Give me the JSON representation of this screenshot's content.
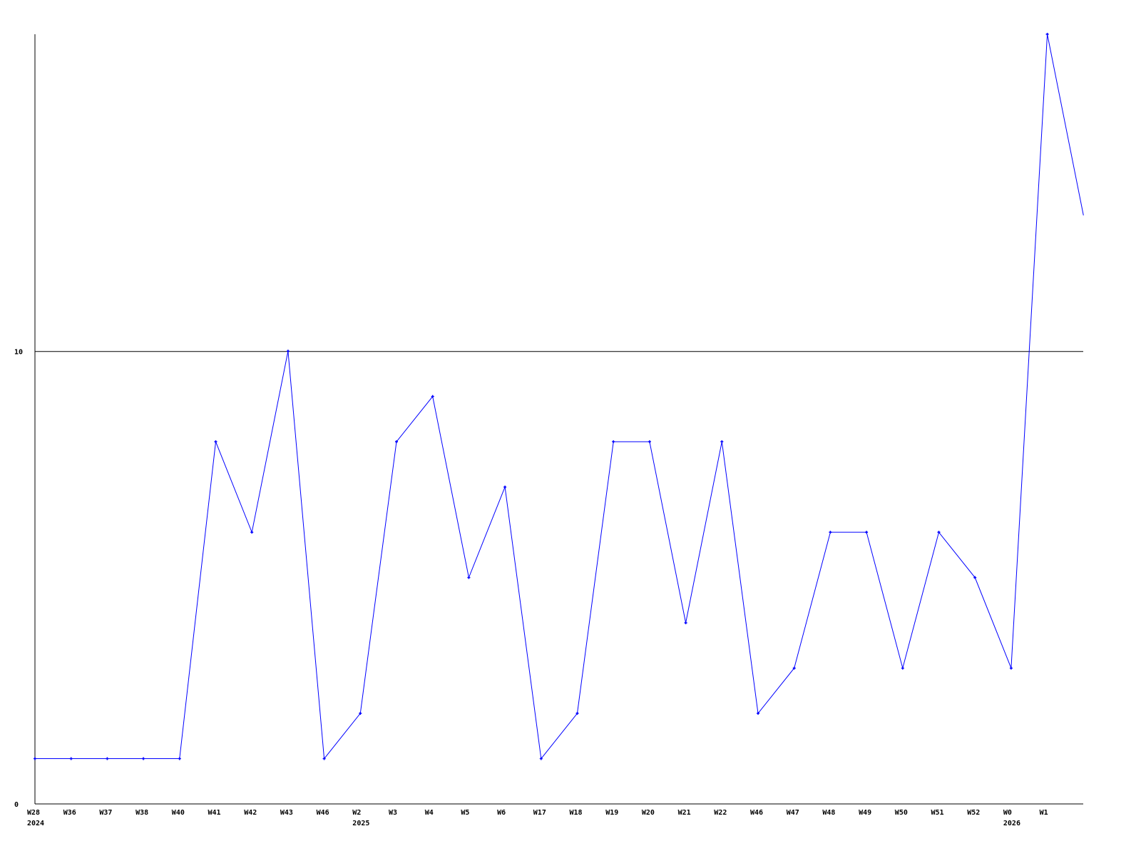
{
  "chart_data": {
    "type": "line",
    "title": "",
    "xlabel": "",
    "ylabel": "",
    "categories": [
      "W28",
      "W36",
      "W37",
      "W38",
      "W40",
      "W41",
      "W42",
      "W43",
      "W46",
      "W2",
      "W3",
      "W4",
      "W5",
      "W6",
      "W17",
      "W18",
      "W19",
      "W20",
      "W21",
      "W22",
      "W46",
      "W47",
      "W48",
      "W49",
      "W50",
      "W51",
      "W52",
      "W0",
      "W1",
      ""
    ],
    "year_labels": [
      {
        "category_index": 0,
        "label": "2024"
      },
      {
        "category_index": 9,
        "label": "2025"
      },
      {
        "category_index": 27,
        "label": "2026"
      }
    ],
    "series": [
      {
        "values": [
          1,
          1,
          1,
          1,
          1,
          8,
          6,
          10,
          1,
          2,
          8,
          9,
          5,
          7,
          1,
          2,
          8,
          8,
          4,
          8,
          2,
          3,
          6,
          6,
          3,
          6,
          5,
          3,
          17,
          13
        ],
        "color": "#0000ff"
      }
    ],
    "ylim": [
      0,
      17
    ],
    "yticks": [
      0,
      10
    ],
    "ytick_labels": [
      "0",
      "10"
    ],
    "grid": "horizontal line at 10",
    "legend": "none"
  }
}
